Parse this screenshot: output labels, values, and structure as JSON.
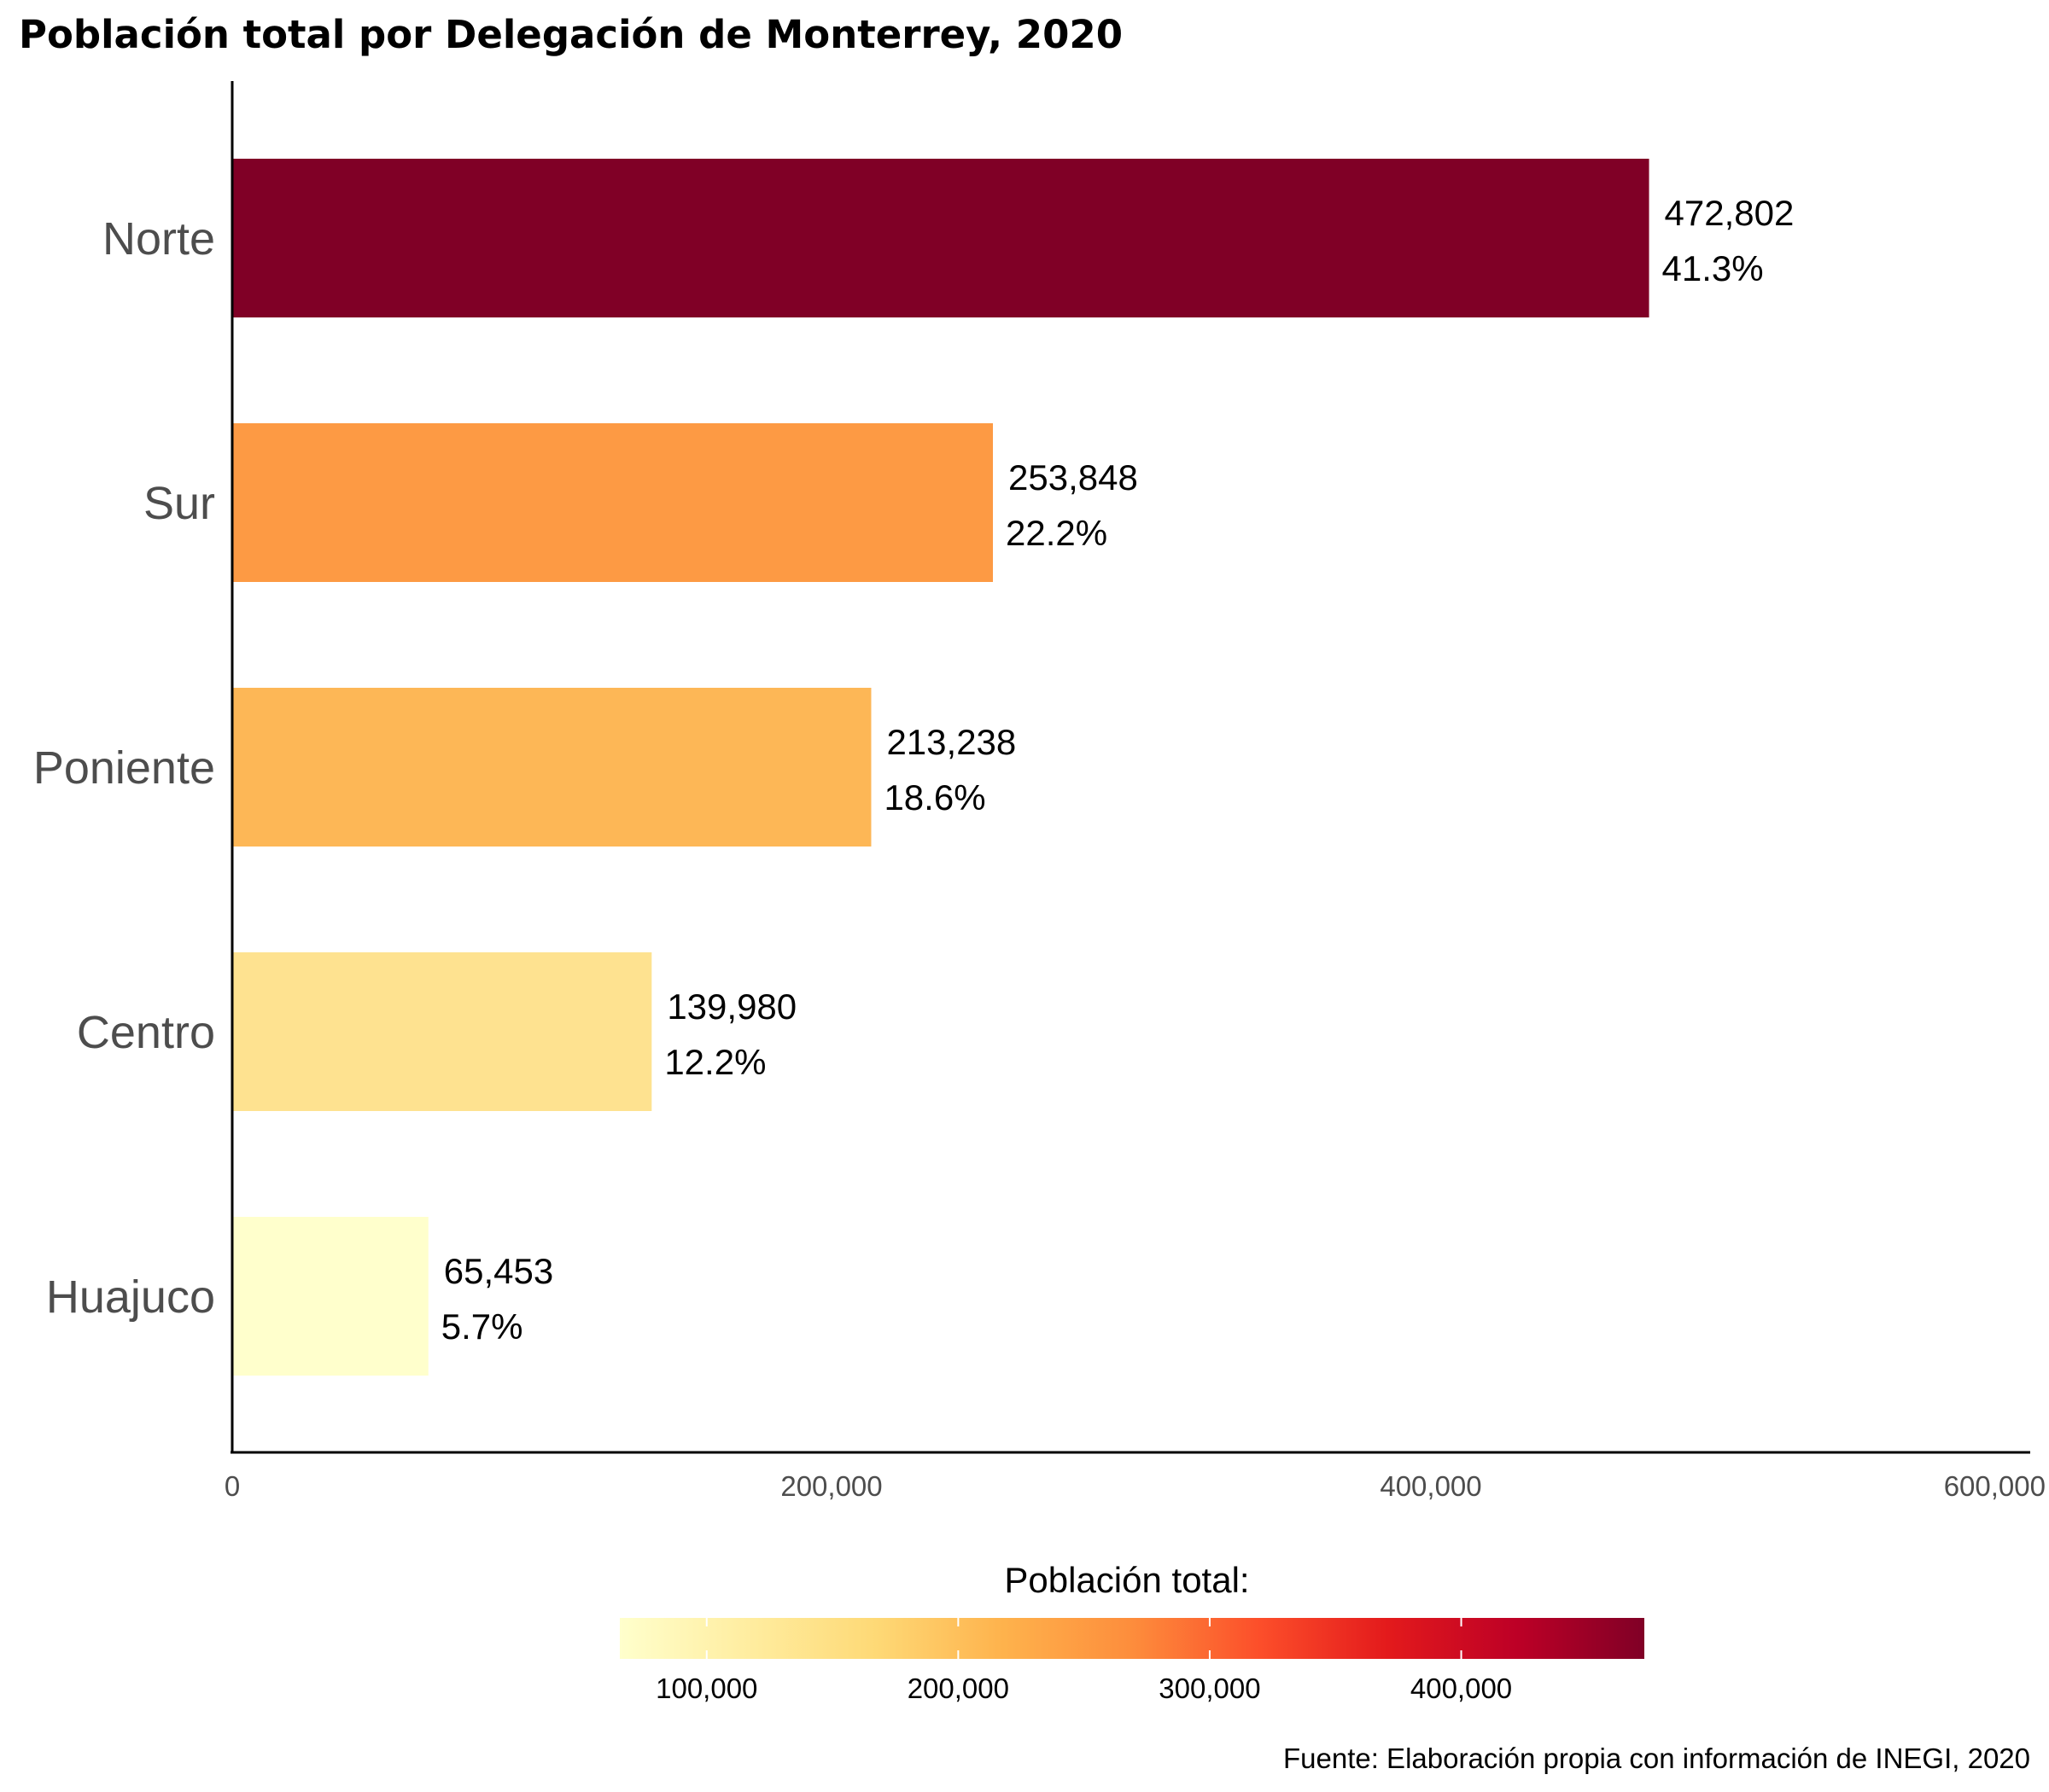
{
  "chart_data": {
    "type": "bar",
    "orientation": "horizontal",
    "title": "Población total por Delegación de Monterrey, 2020",
    "categories": [
      "Norte",
      "Sur",
      "Poniente",
      "Centro",
      "Huajuco"
    ],
    "values": [
      472802,
      253848,
      213238,
      139980,
      65453
    ],
    "value_labels": [
      "472,802",
      "253,848",
      "213,238",
      "139,980",
      "65,453"
    ],
    "percent_labels": [
      "41.3%",
      "22.2%",
      "18.6%",
      "12.2%",
      "5.7%"
    ],
    "bar_colors": [
      "#800026",
      "#FD9A44",
      "#FDB756",
      "#FEE290",
      "#FFFFCC"
    ],
    "xlim": [
      0,
      600000
    ],
    "x_ticks": [
      0,
      200000,
      400000,
      600000
    ],
    "x_tick_labels": [
      "0",
      "200,000",
      "400,000",
      "600,000"
    ],
    "legend": {
      "title": "Población total:",
      "position": "bottom",
      "type": "colorbar",
      "range": [
        65453,
        472802
      ],
      "ticks": [
        100000,
        200000,
        300000,
        400000
      ],
      "tick_labels": [
        "100,000",
        "200,000",
        "300,000",
        "400,000"
      ],
      "gradient": [
        "#FFFFCC",
        "#FFEDA0",
        "#FED976",
        "#FEB24C",
        "#FD8D3C",
        "#FC4E2A",
        "#E31A1C",
        "#BD0026",
        "#800026"
      ]
    },
    "caption": "Fuente: Elaboración propia con información de INEGI, 2020"
  }
}
